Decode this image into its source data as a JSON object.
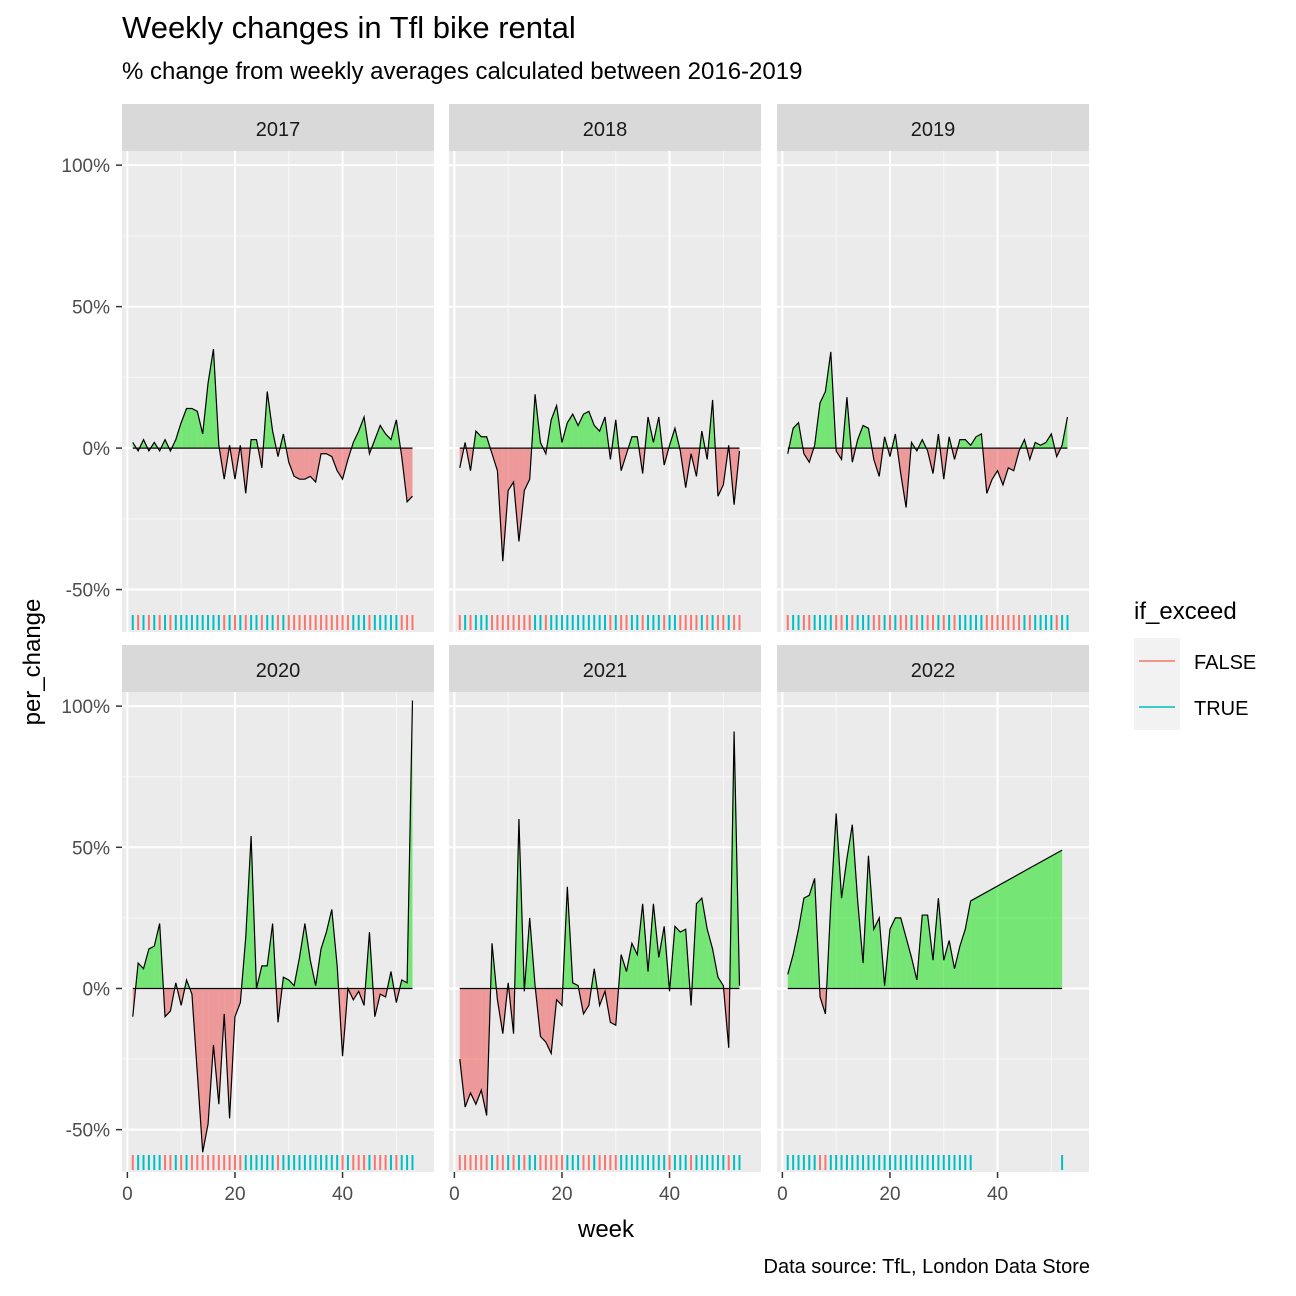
{
  "title": "Weekly changes in Tfl bike rental",
  "subtitle": "% change from weekly averages calculated between 2016-2019",
  "caption": "Data source: TfL, London Data Store",
  "chart_data": {
    "type": "area",
    "xlabel": "week",
    "ylabel": "per_change",
    "xlim": [
      -1,
      57
    ],
    "ylim": [
      -65,
      105
    ],
    "x_ticks": [
      0,
      20,
      40
    ],
    "x_tick_labels": [
      "0",
      "20",
      "40"
    ],
    "y_ticks": [
      -50,
      0,
      50,
      100
    ],
    "y_tick_labels": [
      "-50%",
      "0%",
      "50%",
      "100%"
    ],
    "grid": true,
    "legend": {
      "title": "if_exceed",
      "position": "right",
      "entries": [
        {
          "label": "FALSE",
          "color": "#F8766D"
        },
        {
          "label": "TRUE",
          "color": "#00BFC4"
        }
      ]
    },
    "colors": {
      "above": "#00E000",
      "below": "#F0484A",
      "false_rug": "#F8766D",
      "true_rug": "#00BFC4"
    },
    "panels": [
      {
        "year": "2017",
        "weeks": [
          1,
          2,
          3,
          4,
          5,
          6,
          7,
          8,
          9,
          10,
          11,
          12,
          13,
          14,
          15,
          16,
          17,
          18,
          19,
          20,
          21,
          22,
          23,
          24,
          25,
          26,
          27,
          28,
          29,
          30,
          31,
          32,
          33,
          34,
          35,
          36,
          37,
          38,
          39,
          40,
          41,
          42,
          43,
          44,
          45,
          46,
          47,
          48,
          49,
          50,
          51,
          52,
          53
        ],
        "values": [
          2,
          -1,
          3,
          -1,
          2,
          -1,
          3,
          -1,
          3,
          9,
          14,
          14,
          13,
          5,
          23,
          35,
          1,
          -11,
          1,
          -11,
          1,
          -16,
          3,
          3,
          -7,
          20,
          6,
          -3,
          5,
          -5,
          -10,
          -11,
          -11,
          -10,
          -12,
          -2,
          -2,
          -3,
          -8,
          -11,
          -4,
          2,
          6,
          11,
          -2,
          3,
          8,
          5,
          3,
          10,
          -3,
          -19,
          -17
        ]
      },
      {
        "year": "2018",
        "weeks": [
          1,
          2,
          3,
          4,
          5,
          6,
          7,
          8,
          9,
          10,
          11,
          12,
          13,
          14,
          15,
          16,
          17,
          18,
          19,
          20,
          21,
          22,
          23,
          24,
          25,
          26,
          27,
          28,
          29,
          30,
          31,
          32,
          33,
          34,
          35,
          36,
          37,
          38,
          39,
          40,
          41,
          42,
          43,
          44,
          45,
          46,
          47,
          48,
          49,
          50,
          51,
          52,
          53
        ],
        "values": [
          -7,
          2,
          -8,
          6,
          4,
          4,
          -2,
          -8,
          -40,
          -15,
          -12,
          -33,
          -15,
          -11,
          19,
          2,
          -2,
          10,
          15,
          2,
          9,
          12,
          8,
          12,
          13,
          8,
          6,
          11,
          -4,
          10,
          -8,
          -2,
          4,
          4,
          -9,
          11,
          2,
          11,
          -6,
          1,
          7,
          -1,
          -14,
          -2,
          -10,
          6,
          -4,
          17,
          -17,
          -13,
          1,
          -20,
          -1
        ]
      },
      {
        "year": "2019",
        "weeks": [
          1,
          2,
          3,
          4,
          5,
          6,
          7,
          8,
          9,
          10,
          11,
          12,
          13,
          14,
          15,
          16,
          17,
          18,
          19,
          20,
          21,
          22,
          23,
          24,
          25,
          26,
          27,
          28,
          29,
          30,
          31,
          32,
          33,
          34,
          35,
          36,
          37,
          38,
          39,
          40,
          41,
          42,
          43,
          44,
          45,
          46,
          47,
          48,
          49,
          50,
          51,
          52,
          53
        ],
        "values": [
          -2,
          7,
          9,
          -2,
          -5,
          1,
          16,
          20,
          34,
          -1,
          -4,
          18,
          -5,
          3,
          8,
          7,
          -4,
          -10,
          4,
          -3,
          5,
          -9,
          -21,
          2,
          -1,
          3,
          -1,
          -9,
          5,
          -11,
          4,
          -4,
          3,
          3,
          1,
          4,
          5,
          -16,
          -11,
          -8,
          -13,
          -7,
          -8,
          -1,
          3,
          -4,
          2,
          1,
          2,
          5,
          -3,
          1,
          11
        ]
      },
      {
        "year": "2020",
        "weeks": [
          1,
          2,
          3,
          4,
          5,
          6,
          7,
          8,
          9,
          10,
          11,
          12,
          13,
          14,
          15,
          16,
          17,
          18,
          19,
          20,
          21,
          22,
          23,
          24,
          25,
          26,
          27,
          28,
          29,
          30,
          31,
          32,
          33,
          34,
          35,
          36,
          37,
          38,
          39,
          40,
          41,
          42,
          43,
          44,
          45,
          46,
          47,
          48,
          49,
          50,
          51,
          52,
          53
        ],
        "values": [
          -10,
          9,
          7,
          14,
          15,
          23,
          -10,
          -8,
          2,
          -6,
          3,
          -2,
          -30,
          -58,
          -48,
          -20,
          -41,
          -9,
          -46,
          -10,
          -5,
          18,
          54,
          0,
          8,
          8,
          23,
          -12,
          4,
          3,
          1,
          11,
          23,
          10,
          1,
          14,
          20,
          28,
          8,
          -24,
          0,
          -4,
          -1,
          -6,
          20,
          -10,
          -2,
          -3,
          6,
          -5,
          3,
          2,
          102
        ]
      },
      {
        "year": "2021",
        "weeks": [
          1,
          2,
          3,
          4,
          5,
          6,
          7,
          8,
          9,
          10,
          11,
          12,
          13,
          14,
          15,
          16,
          17,
          18,
          19,
          20,
          21,
          22,
          23,
          24,
          25,
          26,
          27,
          28,
          29,
          30,
          31,
          32,
          33,
          34,
          35,
          36,
          37,
          38,
          39,
          40,
          41,
          42,
          43,
          44,
          45,
          46,
          47,
          48,
          49,
          50,
          51,
          52,
          53
        ],
        "values": [
          -25,
          -42,
          -37,
          -41,
          -36,
          -45,
          16,
          -4,
          -16,
          2,
          -16,
          60,
          -1,
          25,
          1,
          -17,
          -19,
          -23,
          -4,
          -6,
          36,
          2,
          1,
          -9,
          -6,
          7,
          -6,
          -1,
          -12,
          -13,
          12,
          6,
          16,
          12,
          30,
          6,
          30,
          11,
          22,
          -1,
          22,
          20,
          21,
          -6,
          30,
          32,
          21,
          14,
          4,
          1,
          -21,
          91,
          1
        ]
      },
      {
        "year": "2022",
        "weeks": [
          1,
          2,
          3,
          4,
          5,
          6,
          7,
          8,
          9,
          10,
          11,
          12,
          13,
          14,
          15,
          16,
          17,
          18,
          19,
          20,
          21,
          22,
          23,
          24,
          25,
          26,
          27,
          28,
          29,
          30,
          31,
          32,
          33,
          34,
          35,
          52
        ],
        "values": [
          5,
          12,
          21,
          32,
          33,
          39,
          -3,
          -9,
          30,
          62,
          32,
          46,
          58,
          31,
          9,
          47,
          21,
          25,
          1,
          21,
          25,
          25,
          18,
          11,
          3,
          26,
          26,
          10,
          32,
          10,
          17,
          7,
          15,
          21,
          31,
          49
        ]
      }
    ]
  }
}
